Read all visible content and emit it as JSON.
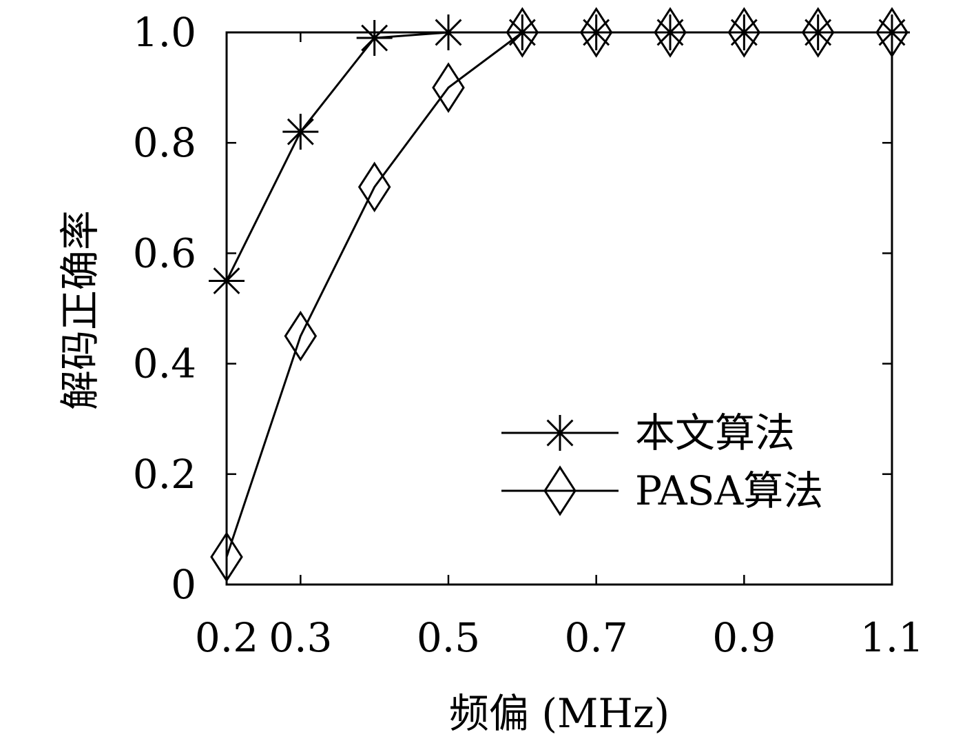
{
  "chart_data": {
    "type": "line",
    "title": "",
    "xlabel": "频偏 (MHz)",
    "ylabel": "解码正确率",
    "xlim": [
      0.2,
      1.1
    ],
    "ylim": [
      0,
      1.0
    ],
    "xticks": [
      0.2,
      0.3,
      0.5,
      0.7,
      0.9,
      1.1
    ],
    "xtick_labels": [
      "0.2",
      "0.3",
      "0.5",
      "0.7",
      "0.9",
      "1.1"
    ],
    "yticks": [
      0,
      0.2,
      0.4,
      0.6,
      0.8,
      1.0
    ],
    "ytick_labels": [
      "0",
      "0.2",
      "0.4",
      "0.6",
      "0.8",
      "1.0"
    ],
    "grid": false,
    "legend_position": "bottom-right",
    "x": [
      0.2,
      0.3,
      0.4,
      0.5,
      0.6,
      0.7,
      0.8,
      0.9,
      1.0,
      1.1
    ],
    "series": [
      {
        "name": "本文算法",
        "marker": "asterisk",
        "color": "#000000",
        "values": [
          0.55,
          0.82,
          0.99,
          1.0,
          1.0,
          1.0,
          1.0,
          1.0,
          1.0,
          1.0
        ]
      },
      {
        "name": "PASA算法",
        "marker": "diamond",
        "color": "#000000",
        "values": [
          0.05,
          0.45,
          0.72,
          0.9,
          1.0,
          1.0,
          1.0,
          1.0,
          1.0,
          1.0
        ]
      }
    ]
  }
}
